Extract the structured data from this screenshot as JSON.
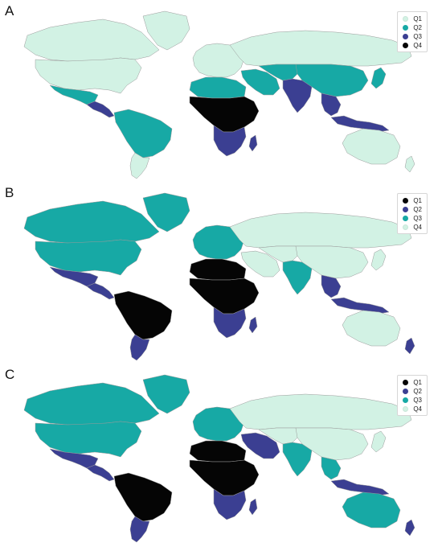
{
  "colors": {
    "light": "#d2f2e4",
    "teal": "#17a9a5",
    "navy": "#3b3f92",
    "black": "#050505",
    "border": "#9a9a9a"
  },
  "panels": [
    {
      "label": "A",
      "legend": [
        {
          "label": "Q1",
          "color": "#d2f2e4"
        },
        {
          "label": "Q2",
          "color": "#17a9a5"
        },
        {
          "label": "Q3",
          "color": "#3b3f92"
        },
        {
          "label": "Q4",
          "color": "#050505"
        }
      ],
      "regions": {
        "canada": "#d2f2e4",
        "usa": "#d2f2e4",
        "mexico": "#17a9a5",
        "central_america": "#3b3f92",
        "south_america": "#17a9a5",
        "argentina": "#d2f2e4",
        "greenland": "#d2f2e4",
        "europe": "#d2f2e4",
        "russia": "#d2f2e4",
        "middle_east": "#17a9a5",
        "central_asia": "#17a9a5",
        "china": "#17a9a5",
        "india": "#3b3f92",
        "se_asia": "#3b3f92",
        "africa_north": "#17a9a5",
        "africa_central": "#050505",
        "africa_south": "#3b3f92",
        "australia": "#d2f2e4",
        "indonesia": "#3b3f92",
        "japan": "#17a9a5",
        "new_zealand": "#d2f2e4",
        "madagascar": "#3b3f92"
      }
    },
    {
      "label": "B",
      "legend": [
        {
          "label": "Q1",
          "color": "#050505"
        },
        {
          "label": "Q2",
          "color": "#3b3f92"
        },
        {
          "label": "Q3",
          "color": "#17a9a5"
        },
        {
          "label": "Q4",
          "color": "#d2f2e4"
        }
      ],
      "regions": {
        "canada": "#17a9a5",
        "usa": "#17a9a5",
        "mexico": "#3b3f92",
        "central_america": "#3b3f92",
        "south_america": "#050505",
        "argentina": "#3b3f92",
        "greenland": "#17a9a5",
        "europe": "#17a9a5",
        "russia": "#d2f2e4",
        "middle_east": "#d2f2e4",
        "central_asia": "#d2f2e4",
        "china": "#d2f2e4",
        "india": "#17a9a5",
        "se_asia": "#3b3f92",
        "africa_north": "#050505",
        "africa_central": "#050505",
        "africa_south": "#3b3f92",
        "australia": "#d2f2e4",
        "indonesia": "#3b3f92",
        "japan": "#d2f2e4",
        "new_zealand": "#3b3f92",
        "madagascar": "#3b3f92"
      }
    },
    {
      "label": "C",
      "legend": [
        {
          "label": "Q1",
          "color": "#050505"
        },
        {
          "label": "Q2",
          "color": "#3b3f92"
        },
        {
          "label": "Q3",
          "color": "#17a9a5"
        },
        {
          "label": "Q4",
          "color": "#d2f2e4"
        }
      ],
      "regions": {
        "canada": "#17a9a5",
        "usa": "#17a9a5",
        "mexico": "#3b3f92",
        "central_america": "#3b3f92",
        "south_america": "#050505",
        "argentina": "#3b3f92",
        "greenland": "#17a9a5",
        "europe": "#17a9a5",
        "russia": "#d2f2e4",
        "middle_east": "#3b3f92",
        "central_asia": "#d2f2e4",
        "china": "#d2f2e4",
        "india": "#17a9a5",
        "se_asia": "#17a9a5",
        "africa_north": "#050505",
        "africa_central": "#050505",
        "africa_south": "#3b3f92",
        "australia": "#17a9a5",
        "indonesia": "#3b3f92",
        "japan": "#d2f2e4",
        "new_zealand": "#3b3f92",
        "madagascar": "#3b3f92"
      }
    }
  ]
}
